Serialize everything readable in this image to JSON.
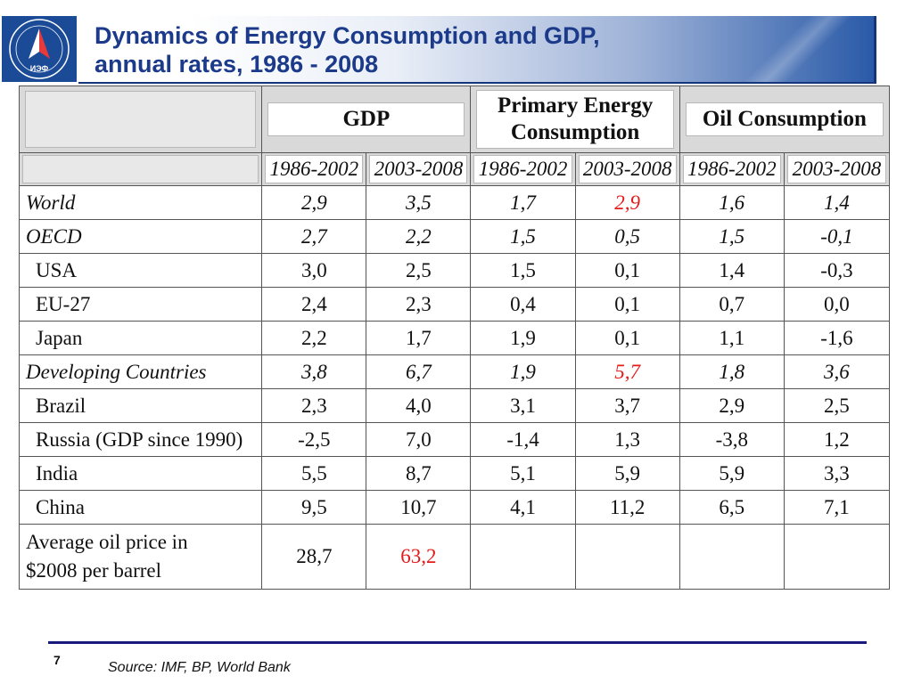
{
  "slide": {
    "title": "Dynamics of Energy Consumption and GDP,\nannual rates, 1986 - 2008",
    "logo_text": "ИЭФ",
    "page_number": "7",
    "source": "Source: IMF, BP, World Bank"
  },
  "table": {
    "group_headers": [
      "GDP",
      "Primary Energy\nConsumption",
      "Oil Consumption"
    ],
    "periods": [
      "1986-2002",
      "2003-2008",
      "1986-2002",
      "2003-2008",
      "1986-2002",
      "2003-2008"
    ],
    "rows": [
      {
        "label": "World",
        "values": [
          "2,9",
          "3,5",
          "1,7",
          "2,9",
          "1,6",
          "1,4"
        ]
      },
      {
        "label": "OECD",
        "values": [
          "2,7",
          "2,2",
          "1,5",
          "0,5",
          "1,5",
          "-0,1"
        ]
      },
      {
        "label": "USA",
        "values": [
          "3,0",
          "2,5",
          "1,5",
          "0,1",
          "1,4",
          "-0,3"
        ]
      },
      {
        "label": "EU-27",
        "values": [
          "2,4",
          "2,3",
          "0,4",
          "0,1",
          "0,7",
          "0,0"
        ]
      },
      {
        "label": "Japan",
        "values": [
          "2,2",
          "1,7",
          "1,9",
          "0,1",
          "1,1",
          "-1,6"
        ]
      },
      {
        "label": "Developing Countries",
        "values": [
          "3,8",
          "6,7",
          "1,9",
          "5,7",
          "1,8",
          "3,6"
        ]
      },
      {
        "label": "Brazil",
        "values": [
          "2,3",
          "4,0",
          "3,1",
          "3,7",
          "2,9",
          "2,5"
        ]
      },
      {
        "label": "Russia (GDP since 1990)",
        "values": [
          "-2,5",
          "7,0",
          "-1,4",
          "1,3",
          "-3,8",
          "1,2"
        ]
      },
      {
        "label": "India",
        "values": [
          "5,5",
          "8,7",
          "5,1",
          "5,9",
          "5,9",
          "3,3"
        ]
      },
      {
        "label": "China",
        "values": [
          "9,5",
          "10,7",
          "4,1",
          "11,2",
          "6,5",
          "7,1"
        ]
      }
    ],
    "oil_price": {
      "label": "Average oil price in\n$2008 per barrel",
      "values": [
        "28,7",
        "63,2",
        "",
        "",
        "",
        ""
      ]
    }
  },
  "colors": {
    "title": "#1b3a8a",
    "highlight": "#e41b1b",
    "header_bg": "#d9d9d9",
    "footer_line": "#1a1a7c"
  }
}
